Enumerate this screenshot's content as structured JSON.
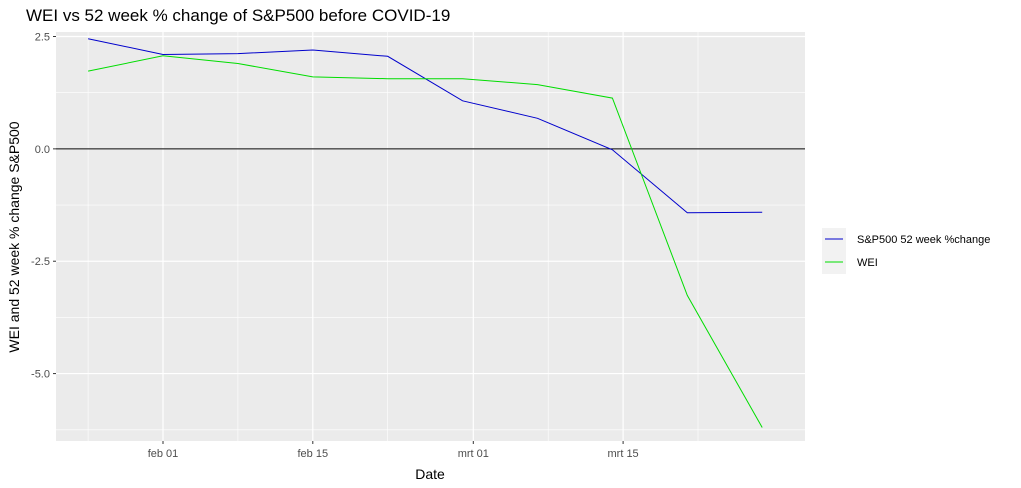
{
  "chart_data": {
    "type": "line",
    "title": "WEI vs 52 week % change of S&P500 before COVID-19",
    "xlabel": "Date",
    "ylabel": "WEI and 52 week % change S&P500",
    "x_ticks": [
      "feb 01",
      "feb 15",
      "mrt 01",
      "mrt 15"
    ],
    "y_ticks": [
      "2.5",
      "0.0",
      "-2.5",
      "-5.0"
    ],
    "ylim": [
      -6.5,
      2.6
    ],
    "xlim": [
      "2020-01-22",
      "2020-04-01"
    ],
    "hline": 0,
    "grid": true,
    "legend_position": "right",
    "series": [
      {
        "name": "S&P500 52 week %change",
        "color": "#0000cc",
        "x": [
          "2020-01-25",
          "2020-02-01",
          "2020-02-08",
          "2020-02-15",
          "2020-02-22",
          "2020-02-29",
          "2020-03-07",
          "2020-03-14",
          "2020-03-21",
          "2020-03-28"
        ],
        "y": [
          2.45,
          2.1,
          2.12,
          2.2,
          2.06,
          1.07,
          0.68,
          -0.02,
          -1.42,
          -1.41
        ]
      },
      {
        "name": "WEI",
        "color": "#00dd00",
        "x": [
          "2020-01-25",
          "2020-02-01",
          "2020-02-08",
          "2020-02-15",
          "2020-02-22",
          "2020-02-29",
          "2020-03-07",
          "2020-03-14",
          "2020-03-21",
          "2020-03-28"
        ],
        "y": [
          1.73,
          2.07,
          1.9,
          1.6,
          1.56,
          1.56,
          1.43,
          1.13,
          -3.26,
          -6.2
        ]
      }
    ]
  }
}
